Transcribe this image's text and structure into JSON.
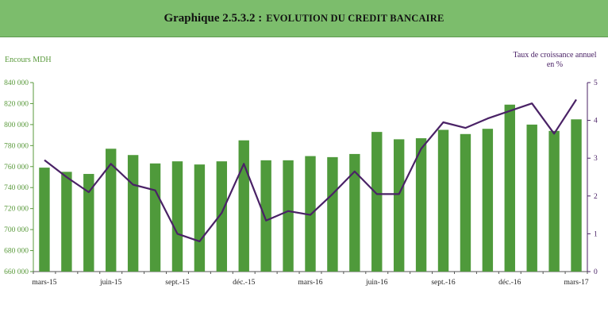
{
  "header": {
    "title_prefix": "Graphique 2.5.3.2 :",
    "title_main": "EVOLUTION DU CREDIT BANCAIRE",
    "bg_color": "#7cbd6c"
  },
  "chart_data": {
    "type": "bar+line",
    "left_axis_label": "Encours MDH",
    "right_axis_label_line1": "Taux de croissance annuel",
    "right_axis_label_line2": "en %",
    "ylim_left": [
      660000,
      840000
    ],
    "ylim_right": [
      0,
      5
    ],
    "yticks_left": [
      "660 000",
      "680 000",
      "700 000",
      "720 000",
      "740 000",
      "760 000",
      "780 000",
      "800 000",
      "820 000",
      "840 000"
    ],
    "yticks_right": [
      "0",
      "1",
      "2",
      "3",
      "4",
      "5"
    ],
    "x_tick_labels": [
      {
        "index": 0,
        "label": "mars-15"
      },
      {
        "index": 3,
        "label": "juin-15"
      },
      {
        "index": 6,
        "label": "sept.-15"
      },
      {
        "index": 9,
        "label": "déc.-15"
      },
      {
        "index": 12,
        "label": "mars-16"
      },
      {
        "index": 15,
        "label": "juin-16"
      },
      {
        "index": 18,
        "label": "sept.-16"
      },
      {
        "index": 21,
        "label": "déc.-16"
      },
      {
        "index": 24,
        "label": "mars-17"
      }
    ],
    "bars": {
      "color": "#4f9a3b",
      "values": [
        759000,
        755000,
        753000,
        777000,
        771000,
        763000,
        765000,
        762000,
        765000,
        785000,
        766000,
        766000,
        770000,
        769000,
        772000,
        793000,
        786000,
        787000,
        795000,
        791000,
        796000,
        819000,
        800000,
        794000,
        805000
      ]
    },
    "line": {
      "color": "#4a2266",
      "values": [
        2.95,
        2.5,
        2.1,
        2.85,
        2.3,
        2.15,
        1.0,
        0.8,
        1.55,
        2.85,
        1.35,
        1.6,
        1.5,
        2.05,
        2.65,
        2.05,
        2.05,
        3.25,
        3.95,
        3.8,
        4.05,
        4.25,
        4.45,
        3.65,
        4.55
      ]
    }
  }
}
